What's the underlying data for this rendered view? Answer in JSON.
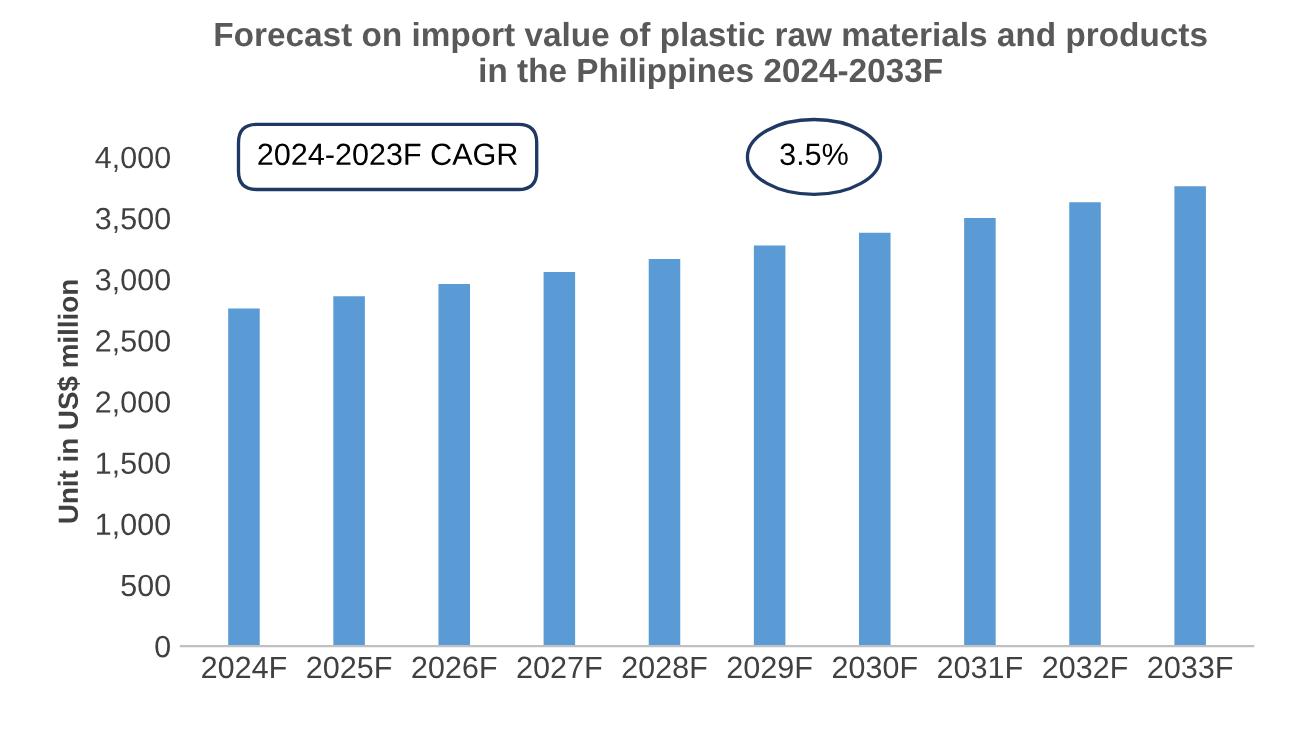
{
  "chart_data": {
    "type": "bar",
    "title": "Forecast on import value of plastic raw materials and products\nin the Philippines 2024-2033F",
    "ylabel": "Unit in US$ million",
    "categories": [
      "2024F",
      "2025F",
      "2026F",
      "2027F",
      "2028F",
      "2029F",
      "2030F",
      "2031F",
      "2032F",
      "2033F"
    ],
    "values": [
      2760,
      2860,
      2960,
      3060,
      3165,
      3275,
      3380,
      3500,
      3630,
      3760
    ],
    "color": "#5b9bd5",
    "ylim": [
      0,
      4000
    ],
    "yticks": [
      {
        "value": 0,
        "label": "0"
      },
      {
        "value": 500,
        "label": "500"
      },
      {
        "value": 1000,
        "label": "1,000"
      },
      {
        "value": 1500,
        "label": "1,500"
      },
      {
        "value": 2000,
        "label": "2,000"
      },
      {
        "value": 2500,
        "label": "2,500"
      },
      {
        "value": 3000,
        "label": "3,000"
      },
      {
        "value": 3500,
        "label": "3,500"
      },
      {
        "value": 4000,
        "label": "4,000"
      }
    ],
    "grid": false,
    "annotations": [
      "2024-2023F CAGR",
      "3.5%"
    ]
  }
}
